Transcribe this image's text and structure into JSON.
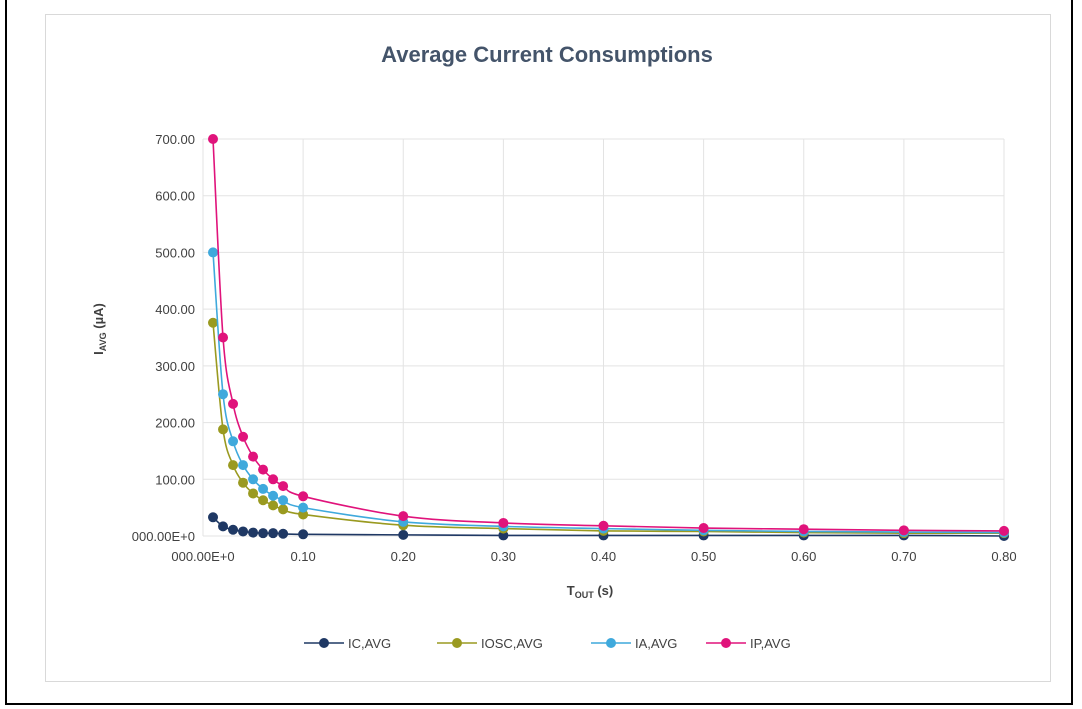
{
  "header": {
    "visible_text": "Average Current Consumptions"
  },
  "chart_data": {
    "type": "line",
    "title": "Average Current Consumptions",
    "xlabel": {
      "main": "T",
      "sub": "OUT",
      "unit": " (s)"
    },
    "ylabel": {
      "main": "I",
      "sub": "AVG",
      "unit": " (µA)"
    },
    "xlim": [
      0,
      0.8
    ],
    "ylim": [
      0,
      700
    ],
    "x_ticks": [
      {
        "v": 0,
        "label": "000.00E+0"
      },
      {
        "v": 0.1,
        "label": "0.10"
      },
      {
        "v": 0.2,
        "label": "0.20"
      },
      {
        "v": 0.3,
        "label": "0.30"
      },
      {
        "v": 0.4,
        "label": "0.40"
      },
      {
        "v": 0.5,
        "label": "0.50"
      },
      {
        "v": 0.6,
        "label": "0.60"
      },
      {
        "v": 0.7,
        "label": "0.70"
      },
      {
        "v": 0.8,
        "label": "0.80"
      }
    ],
    "y_ticks": [
      {
        "v": 0,
        "label": "000.00E+0"
      },
      {
        "v": 100,
        "label": "100.00"
      },
      {
        "v": 200,
        "label": "200.00"
      },
      {
        "v": 300,
        "label": "300.00"
      },
      {
        "v": 400,
        "label": "400.00"
      },
      {
        "v": 500,
        "label": "500.00"
      },
      {
        "v": 600,
        "label": "600.00"
      },
      {
        "v": 700,
        "label": "700.00"
      }
    ],
    "grid": true,
    "legend_position": "bottom",
    "x": [
      0.01,
      0.02,
      0.03,
      0.04,
      0.05,
      0.06,
      0.07,
      0.08,
      0.1,
      0.2,
      0.3,
      0.4,
      0.5,
      0.6,
      0.7,
      0.8
    ],
    "series": [
      {
        "name": "IC,AVG",
        "color": "#1f3864",
        "values": [
          33,
          17,
          11,
          8,
          6,
          5,
          5,
          4,
          3,
          2,
          1,
          1,
          1,
          1,
          1,
          0
        ]
      },
      {
        "name": "IOSC,AVG",
        "color": "#9a9a20",
        "values": [
          376,
          188,
          125,
          94,
          75,
          63,
          54,
          47,
          38,
          19,
          13,
          9,
          8,
          6,
          5,
          5
        ]
      },
      {
        "name": "IA,AVG",
        "color": "#3fa9dc",
        "values": [
          500,
          250,
          167,
          125,
          100,
          83,
          71,
          63,
          50,
          25,
          17,
          13,
          10,
          8,
          7,
          6
        ]
      },
      {
        "name": "IP,AVG",
        "color": "#e0137b",
        "values": [
          700,
          350,
          233,
          175,
          140,
          117,
          100,
          88,
          70,
          35,
          23,
          18,
          14,
          12,
          10,
          9
        ]
      }
    ]
  }
}
